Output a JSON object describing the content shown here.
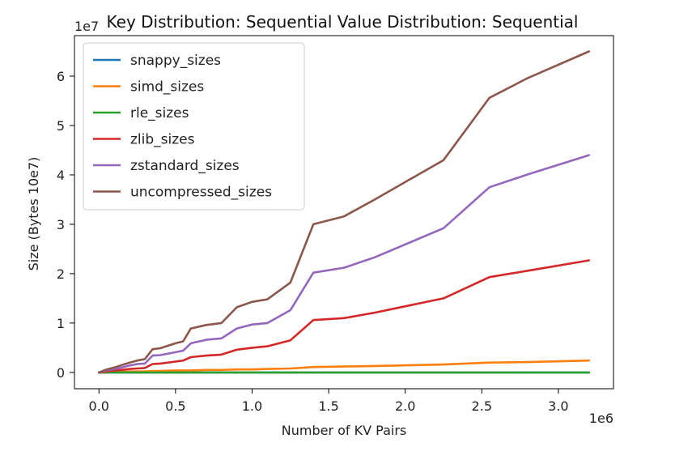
{
  "chart_data": {
    "type": "line",
    "title": "Key Distribution: Sequential Value Distribution: Sequential",
    "xlabel": "Number of KV Pairs",
    "ylabel": "Size (Bytes 10e7)",
    "x_multiplier": "1e6",
    "y_multiplier": "1e7",
    "xlim": [
      -0.16,
      3.36
    ],
    "ylim": [
      -0.33,
      6.82
    ],
    "xticks": [
      0.0,
      0.5,
      1.0,
      1.5,
      2.0,
      2.5,
      3.0
    ],
    "xtick_labels": [
      "0.0",
      "0.5",
      "1.0",
      "1.5",
      "2.0",
      "2.5",
      "3.0"
    ],
    "yticks": [
      0,
      1,
      2,
      3,
      4,
      5,
      6
    ],
    "ytick_labels": [
      "0",
      "1",
      "2",
      "3",
      "4",
      "5",
      "6"
    ],
    "grid": false,
    "legend_position": "upper-left",
    "x": [
      0.0,
      0.05,
      0.1,
      0.15,
      0.2,
      0.25,
      0.3,
      0.35,
      0.4,
      0.5,
      0.55,
      0.6,
      0.7,
      0.8,
      0.9,
      1.0,
      1.1,
      1.25,
      1.4,
      1.6,
      1.8,
      2.25,
      2.55,
      2.8,
      3.2
    ],
    "series": [
      {
        "name": "snappy_sizes",
        "color": "#1f77b4",
        "values": [
          0.0,
          0.0,
          0.0,
          0.0,
          0.0,
          0.0,
          0.0,
          0.0,
          0.0,
          0.0,
          0.0,
          0.0,
          0.0,
          0.0,
          0.0,
          0.0,
          0.0,
          0.0,
          0.0,
          0.0,
          0.0,
          0.0,
          0.0,
          0.0,
          0.0
        ]
      },
      {
        "name": "simd_sizes",
        "color": "#ff7f0e",
        "values": [
          0.0,
          0.0,
          0.01,
          0.01,
          0.02,
          0.02,
          0.02,
          0.03,
          0.03,
          0.04,
          0.04,
          0.04,
          0.05,
          0.05,
          0.06,
          0.06,
          0.07,
          0.08,
          0.11,
          0.12,
          0.13,
          0.16,
          0.2,
          0.21,
          0.24
        ]
      },
      {
        "name": "rle_sizes",
        "color": "#2ca02c",
        "values": [
          0.0,
          0.0,
          0.0,
          0.0,
          0.0,
          0.0,
          0.0,
          0.0,
          0.0,
          0.0,
          0.0,
          0.0,
          0.0,
          0.0,
          0.0,
          0.0,
          0.0,
          0.0,
          0.0,
          0.0,
          0.0,
          0.0,
          0.0,
          0.0,
          0.0
        ]
      },
      {
        "name": "zlib_sizes",
        "color": "#d62728",
        "values": [
          0.0,
          0.02,
          0.04,
          0.05,
          0.07,
          0.08,
          0.09,
          0.17,
          0.18,
          0.22,
          0.24,
          0.31,
          0.34,
          0.36,
          0.46,
          0.5,
          0.53,
          0.65,
          1.06,
          1.1,
          1.21,
          1.5,
          1.93,
          2.06,
          2.27
        ]
      },
      {
        "name": "zstandard_sizes",
        "color": "#9467bd",
        "values": [
          0.0,
          0.04,
          0.07,
          0.1,
          0.14,
          0.17,
          0.18,
          0.34,
          0.35,
          0.41,
          0.44,
          0.59,
          0.66,
          0.69,
          0.89,
          0.97,
          1.0,
          1.26,
          2.02,
          2.12,
          2.33,
          2.92,
          3.75,
          4.01,
          4.4
        ]
      },
      {
        "name": "uncompressed_sizes",
        "color": "#8c564b",
        "values": [
          0.0,
          0.06,
          0.1,
          0.15,
          0.2,
          0.24,
          0.27,
          0.47,
          0.49,
          0.59,
          0.63,
          0.89,
          0.96,
          1.0,
          1.32,
          1.43,
          1.48,
          1.82,
          3.0,
          3.16,
          3.5,
          4.3,
          5.56,
          5.96,
          6.5
        ]
      }
    ]
  }
}
